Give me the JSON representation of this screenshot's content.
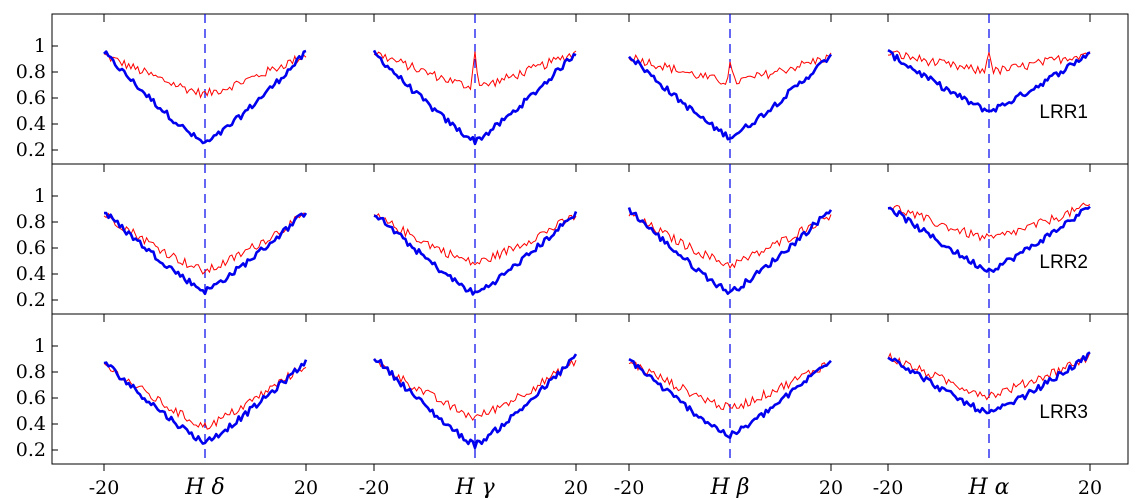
{
  "chart_data": {
    "type": "line",
    "panels": [
      "LRR1",
      "LRR2",
      "LRR3"
    ],
    "lines": [
      "H δ",
      "H γ",
      "H β",
      "H α"
    ],
    "x_tick_labels": [
      "-20",
      "20"
    ],
    "y_tick_labels": [
      "0.2",
      "0.4",
      "0.6",
      "0.8",
      "1"
    ],
    "x_range": [
      -20,
      20
    ],
    "y_range": [
      0,
      1.1
    ],
    "colors": {
      "thick_series": "#0000ee",
      "thin_series": "#ff0000",
      "line_center": "#0000ee"
    },
    "profiles": [
      [
        {
          "thick": {
            "min": 0.25,
            "edge": 0.95
          },
          "thin": {
            "min": 0.63,
            "edge": 0.93,
            "spike": 0
          }
        },
        {
          "thick": {
            "min": 0.27,
            "edge": 0.95
          },
          "thin": {
            "min": 0.68,
            "edge": 0.95,
            "spike": 0.3
          }
        },
        {
          "thick": {
            "min": 0.3,
            "edge": 0.93
          },
          "thin": {
            "min": 0.72,
            "edge": 0.92,
            "spike": 0.14
          }
        },
        {
          "thick": {
            "min": 0.5,
            "edge": 0.95
          },
          "thin": {
            "min": 0.8,
            "edge": 0.95,
            "spike": 0.18
          }
        }
      ],
      [
        {
          "thick": {
            "min": 0.27,
            "edge": 0.88
          },
          "thin": {
            "min": 0.42,
            "edge": 0.86,
            "spike": 0
          }
        },
        {
          "thick": {
            "min": 0.25,
            "edge": 0.87
          },
          "thin": {
            "min": 0.48,
            "edge": 0.85,
            "spike": 0
          }
        },
        {
          "thick": {
            "min": 0.26,
            "edge": 0.9
          },
          "thin": {
            "min": 0.47,
            "edge": 0.86,
            "spike": 0
          }
        },
        {
          "thick": {
            "min": 0.43,
            "edge": 0.92
          },
          "thin": {
            "min": 0.67,
            "edge": 0.93,
            "spike": 0
          }
        }
      ],
      [
        {
          "thick": {
            "min": 0.26,
            "edge": 0.88
          },
          "thin": {
            "min": 0.38,
            "edge": 0.86,
            "spike": 0
          }
        },
        {
          "thick": {
            "min": 0.24,
            "edge": 0.92
          },
          "thin": {
            "min": 0.45,
            "edge": 0.88,
            "spike": 0
          }
        },
        {
          "thick": {
            "min": 0.31,
            "edge": 0.9
          },
          "thin": {
            "min": 0.52,
            "edge": 0.88,
            "spike": 0
          }
        },
        {
          "thick": {
            "min": 0.48,
            "edge": 0.93
          },
          "thin": {
            "min": 0.62,
            "edge": 0.92,
            "spike": 0
          }
        }
      ]
    ]
  }
}
